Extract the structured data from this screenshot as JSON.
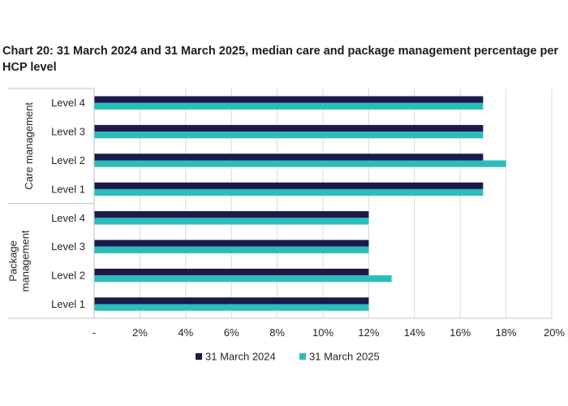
{
  "chart_data": {
    "type": "bar",
    "orientation": "horizontal",
    "title": "Chart 20: 31 March 2024 and 31 March 2025, median care and package management percentage per HCP level",
    "groups": [
      {
        "name": "Care management",
        "categories": [
          "Level 4",
          "Level 3",
          "Level 2",
          "Level 1"
        ]
      },
      {
        "name": "Package management",
        "categories": [
          "Level 4",
          "Level 3",
          "Level 2",
          "Level 1"
        ]
      }
    ],
    "series": [
      {
        "name": "31 March 2024",
        "color": "#1b1a4a",
        "values": [
          17,
          17,
          17,
          17,
          12,
          12,
          12,
          12
        ]
      },
      {
        "name": "31 March 2025",
        "color": "#2bbcbc",
        "values": [
          17,
          17,
          18,
          17,
          12,
          12,
          13,
          12
        ]
      }
    ],
    "x_ticks": [
      "-",
      "2%",
      "4%",
      "6%",
      "8%",
      "10%",
      "12%",
      "14%",
      "16%",
      "18%",
      "20%"
    ],
    "xlim": [
      0,
      20
    ],
    "unit": "%",
    "grid": "vertical",
    "legend": "bottom"
  }
}
